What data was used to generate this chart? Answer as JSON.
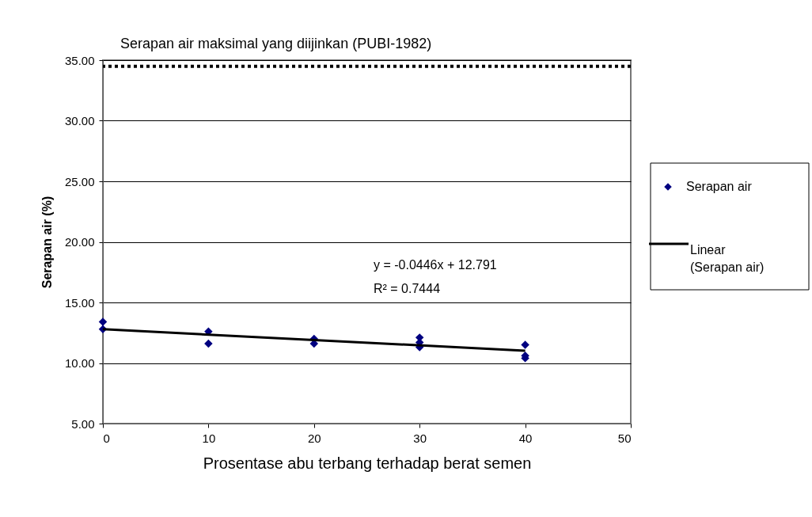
{
  "chart_data": {
    "type": "scatter",
    "xlabel": "Prosentase abu terbang terhadap berat semen",
    "ylabel": "Serapan air (%)",
    "xlim": [
      0,
      50
    ],
    "xticks": [
      0,
      10,
      20,
      30,
      40,
      50
    ],
    "ylim": [
      5,
      35
    ],
    "yticks": [
      {
        "value": 5,
        "label": "5.00"
      },
      {
        "value": 10,
        "label": "10.00"
      },
      {
        "value": 15,
        "label": "15.00"
      },
      {
        "value": 20,
        "label": "20.00"
      },
      {
        "value": 25,
        "label": "25.00"
      },
      {
        "value": 30,
        "label": "30.00"
      },
      {
        "value": 35,
        "label": "35.00"
      }
    ],
    "grid": "y",
    "legend": "right",
    "marker": "diamond",
    "series": [
      {
        "name": "Serapan air",
        "color": "#000080",
        "x": [
          0,
          0,
          10,
          10,
          20,
          20,
          30,
          30,
          30,
          40,
          40,
          40
        ],
        "values": [
          13.4,
          12.8,
          12.6,
          11.6,
          12.0,
          11.6,
          12.1,
          11.7,
          11.3,
          11.5,
          10.6,
          10.4
        ]
      },
      {
        "name": "Linear (Serapan air)",
        "type": "line",
        "color": "#000000",
        "line_style": "solid",
        "marker": "none",
        "x": [
          0,
          40
        ],
        "values": [
          12.79,
          11.01
        ]
      }
    ],
    "ref_lines": [
      {
        "axis": "y",
        "value": 34.5,
        "label": "Serapan air maksimal yang diijinkan (PUBI-1982)",
        "color": "#000000",
        "line_style": "dotted"
      }
    ],
    "annotations": [
      "y = -0.0446x + 12.791",
      "R² = 0.7444"
    ]
  }
}
